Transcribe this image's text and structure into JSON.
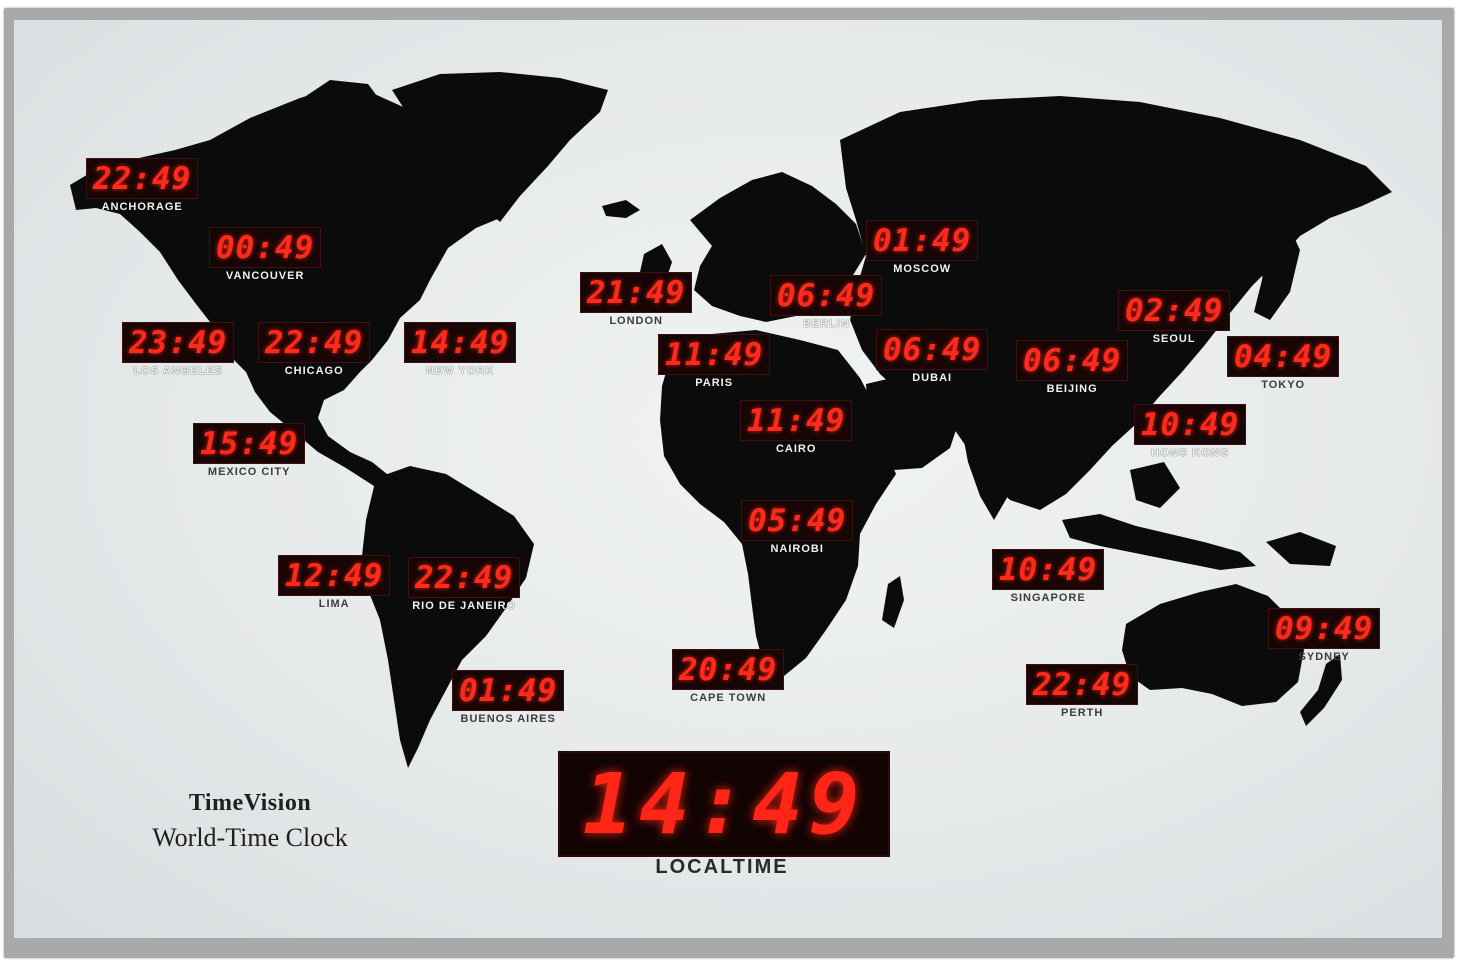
{
  "brand": {
    "name": "TimeVision",
    "subtitle": "World-Time Clock"
  },
  "local": {
    "time": "14:49",
    "label": "LOCALTIME"
  },
  "clocks": [
    {
      "id": "anchorage",
      "time": "22:49",
      "city": "ANCHORAGE"
    },
    {
      "id": "vancouver",
      "time": "00:49",
      "city": "VANCOUVER"
    },
    {
      "id": "los-angeles",
      "time": "23:49",
      "city": "LOS ANGELES"
    },
    {
      "id": "chicago",
      "time": "22:49",
      "city": "CHICAGO"
    },
    {
      "id": "new-york",
      "time": "14:49",
      "city": "NEW YORK"
    },
    {
      "id": "mexico-city",
      "time": "15:49",
      "city": "MEXICO CITY"
    },
    {
      "id": "lima",
      "time": "12:49",
      "city": "LIMA"
    },
    {
      "id": "rio",
      "time": "22:49",
      "city": "RIO DE JANEIRO"
    },
    {
      "id": "buenos-aires",
      "time": "01:49",
      "city": "BUENOS AIRES"
    },
    {
      "id": "london",
      "time": "21:49",
      "city": "LONDON"
    },
    {
      "id": "paris",
      "time": "11:49",
      "city": "PARIS"
    },
    {
      "id": "berlin",
      "time": "06:49",
      "city": "BERLIN"
    },
    {
      "id": "moscow",
      "time": "01:49",
      "city": "MOSCOW"
    },
    {
      "id": "cairo",
      "time": "11:49",
      "city": "CAIRO"
    },
    {
      "id": "nairobi",
      "time": "05:49",
      "city": "NAIROBI"
    },
    {
      "id": "cape-town",
      "time": "20:49",
      "city": "CAPE TOWN"
    },
    {
      "id": "dubai",
      "time": "06:49",
      "city": "DUBAI"
    },
    {
      "id": "beijing",
      "time": "06:49",
      "city": "BEIJING"
    },
    {
      "id": "seoul",
      "time": "02:49",
      "city": "SEOUL"
    },
    {
      "id": "tokyo",
      "time": "04:49",
      "city": "TOKYO"
    },
    {
      "id": "hong-kong",
      "time": "10:49",
      "city": "HONG KONG"
    },
    {
      "id": "singapore",
      "time": "10:49",
      "city": "SINGAPORE"
    },
    {
      "id": "perth",
      "time": "22:49",
      "city": "PERTH"
    },
    {
      "id": "sydney",
      "time": "09:49",
      "city": "SYDNEY"
    }
  ]
}
